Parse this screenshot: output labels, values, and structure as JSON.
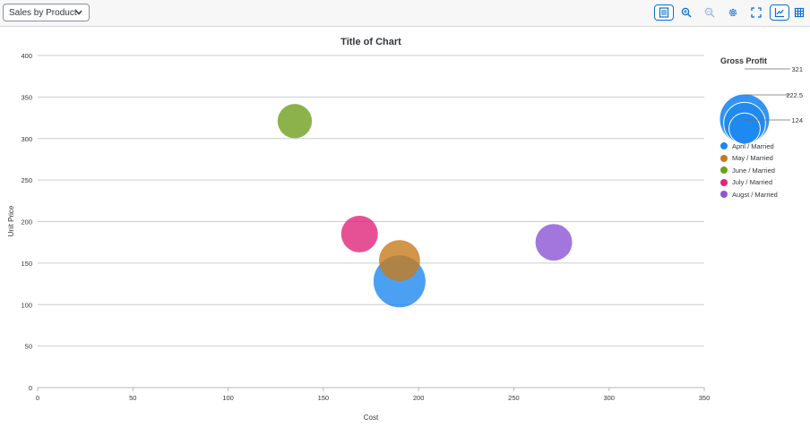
{
  "toolbar": {
    "dropdown_value": "Sales by Product",
    "buttons": [
      {
        "name": "table-view-icon"
      },
      {
        "name": "zoom-in-icon"
      },
      {
        "name": "zoom-out-icon"
      },
      {
        "name": "settings-icon"
      },
      {
        "name": "fullscreen-icon"
      },
      {
        "name": "chart-view-icon"
      },
      {
        "name": "grid-view-icon"
      }
    ]
  },
  "colors": {
    "accent": "#0a6ed1",
    "april": "#1e88f0",
    "may": "#c87b1c",
    "june": "#6f9f1e",
    "july": "#e0267b",
    "august": "#8c54d6"
  },
  "chart_data": {
    "type": "bubble",
    "title": "Title of Chart",
    "xlabel": "Cost",
    "ylabel": "Unit Price",
    "xlim": [
      0,
      350
    ],
    "ylim": [
      0,
      400
    ],
    "x_ticks": [
      "0",
      "50",
      "100",
      "150",
      "200",
      "250",
      "300",
      "350"
    ],
    "y_ticks": [
      "0",
      "50",
      "100",
      "150",
      "200",
      "250",
      "300",
      "350",
      "400"
    ],
    "grid": "horizontal",
    "size_legend": {
      "title": "Gross Profit",
      "values": [
        "321",
        "222.5",
        "124"
      ]
    },
    "series": [
      {
        "name": "April / Married",
        "color": "#1e88f0",
        "x": 190,
        "y": 128,
        "size": 321
      },
      {
        "name": "May / Married",
        "color": "#c87b1c",
        "x": 190,
        "y": 153,
        "size": 200
      },
      {
        "name": "June / Married",
        "color": "#6f9f1e",
        "x": 135,
        "y": 321,
        "size": 140
      },
      {
        "name": "July / Married",
        "color": "#e0267b",
        "x": 169,
        "y": 185,
        "size": 160
      },
      {
        "name": "Augst / Married",
        "color": "#8c54d6",
        "x": 271,
        "y": 175,
        "size": 160
      }
    ]
  }
}
